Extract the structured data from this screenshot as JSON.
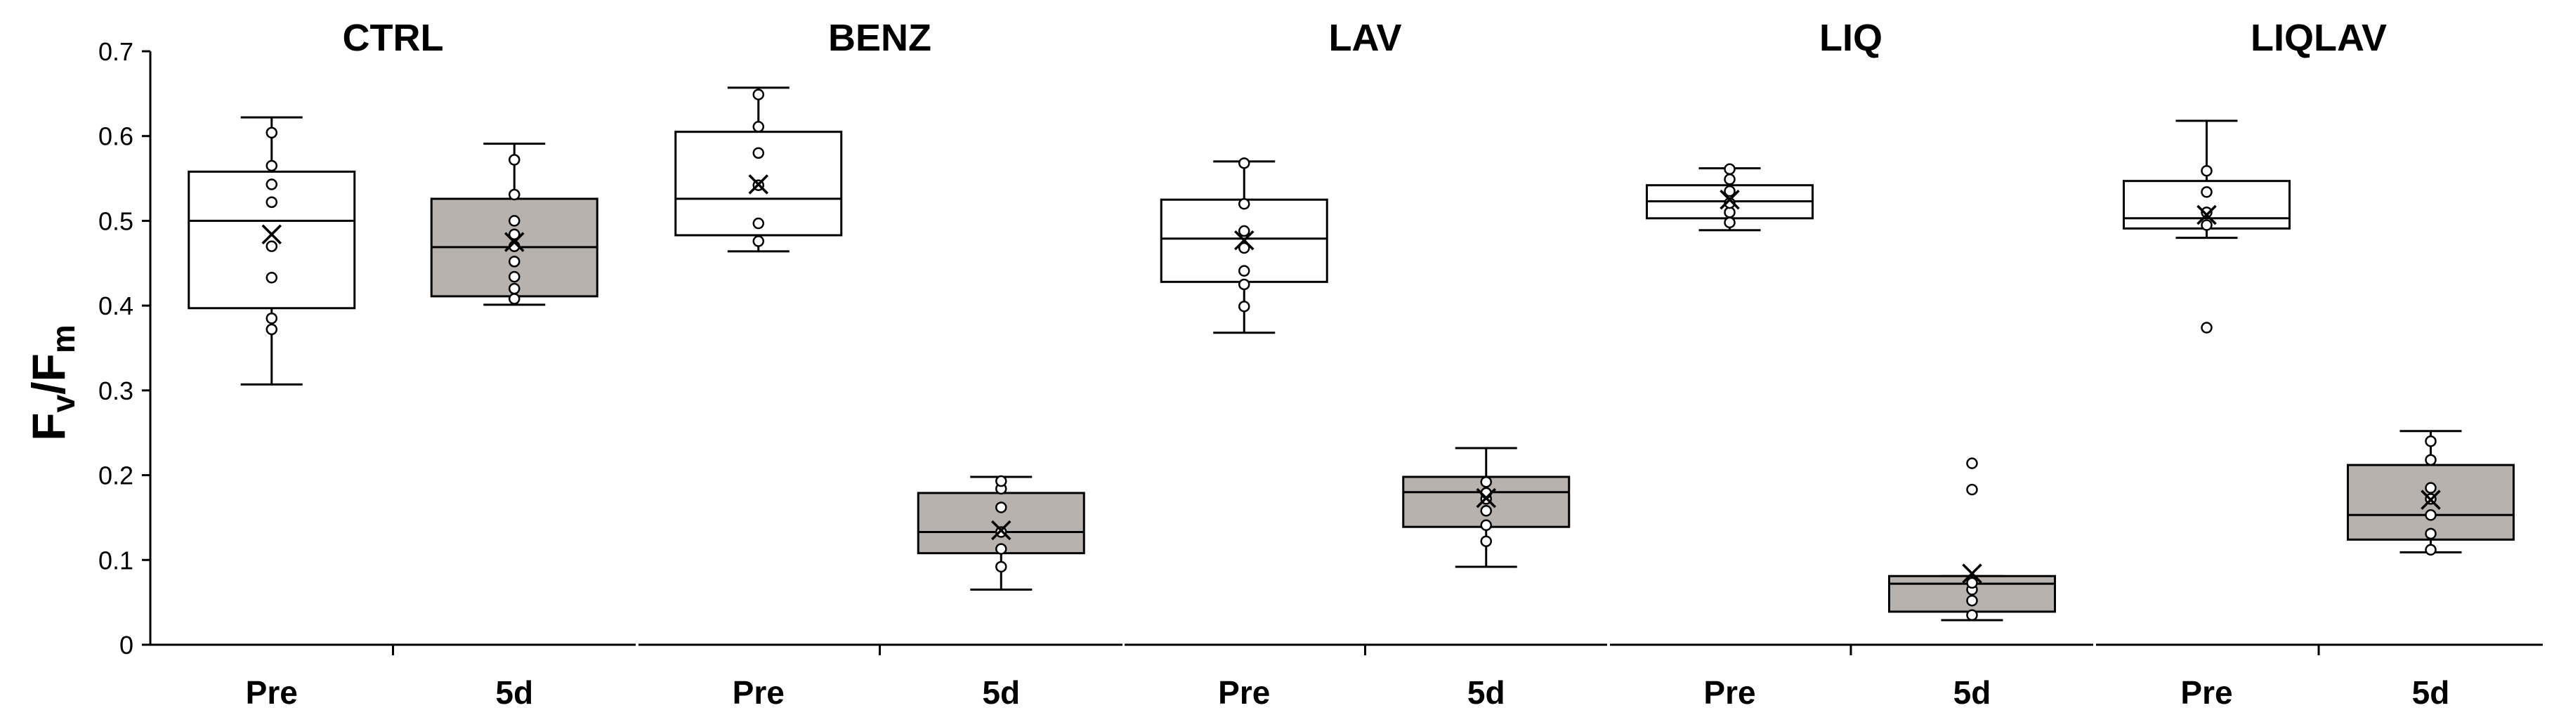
{
  "chart_data": {
    "type": "box",
    "ylabel": {
      "main1": "F",
      "sub1": "v",
      "slash": "/",
      "main2": "F",
      "sub2": "m"
    },
    "ylim": [
      0,
      0.7
    ],
    "yticks": [
      "0",
      "0.1",
      "0.2",
      "0.3",
      "0.4",
      "0.5",
      "0.6",
      "0.7"
    ],
    "categories": [
      "Pre",
      "5d"
    ],
    "colors": {
      "Pre": "#ffffff",
      "5d": "#b7b2ae",
      "stroke": "#000000"
    },
    "panels": [
      {
        "title": "CTRL",
        "boxes": [
          {
            "group": "Pre",
            "min": 0.307,
            "q1": 0.397,
            "median": 0.5,
            "q3": 0.558,
            "max": 0.622,
            "mean": 0.484,
            "points": [
              0.372,
              0.385,
              0.433,
              0.47,
              0.522,
              0.543,
              0.565,
              0.604
            ]
          },
          {
            "group": "5d",
            "min": 0.401,
            "q1": 0.411,
            "median": 0.469,
            "q3": 0.526,
            "max": 0.591,
            "mean": 0.475,
            "points": [
              0.408,
              0.42,
              0.434,
              0.452,
              0.47,
              0.484,
              0.5,
              0.531,
              0.572
            ]
          }
        ]
      },
      {
        "title": "BENZ",
        "boxes": [
          {
            "group": "Pre",
            "min": 0.464,
            "q1": 0.483,
            "median": 0.526,
            "q3": 0.605,
            "max": 0.657,
            "mean": 0.543,
            "points": [
              0.476,
              0.497,
              0.542,
              0.58,
              0.611,
              0.649
            ]
          },
          {
            "group": "5d",
            "min": 0.065,
            "q1": 0.108,
            "median": 0.133,
            "q3": 0.179,
            "max": 0.198,
            "mean": 0.135,
            "points": [
              0.092,
              0.113,
              0.133,
              0.162,
              0.184,
              0.193
            ]
          }
        ]
      },
      {
        "title": "LAV",
        "boxes": [
          {
            "group": "Pre",
            "min": 0.368,
            "q1": 0.428,
            "median": 0.479,
            "q3": 0.525,
            "max": 0.57,
            "mean": 0.477,
            "points": [
              0.399,
              0.425,
              0.441,
              0.468,
              0.488,
              0.52,
              0.568
            ]
          },
          {
            "group": "5d",
            "min": 0.092,
            "q1": 0.139,
            "median": 0.18,
            "q3": 0.198,
            "max": 0.232,
            "mean": 0.173,
            "points": [
              0.122,
              0.141,
              0.158,
              0.172,
              0.179,
              0.192
            ]
          }
        ]
      },
      {
        "title": "LIQ",
        "boxes": [
          {
            "group": "Pre",
            "min": 0.489,
            "q1": 0.503,
            "median": 0.523,
            "q3": 0.542,
            "max": 0.562,
            "mean": 0.525,
            "points": [
              0.498,
              0.51,
              0.521,
              0.535,
              0.549,
              0.561
            ]
          },
          {
            "group": "5d",
            "min": 0.029,
            "q1": 0.039,
            "median": 0.072,
            "q3": 0.081,
            "max": 0.081,
            "mean": 0.084,
            "points": [
              0.035,
              0.052,
              0.065,
              0.073,
              0.183,
              0.214
            ]
          }
        ]
      },
      {
        "title": "LIQLAV",
        "boxes": [
          {
            "group": "Pre",
            "min": 0.48,
            "q1": 0.491,
            "median": 0.503,
            "q3": 0.547,
            "max": 0.618,
            "mean": 0.507,
            "points": [
              0.495,
              0.51,
              0.534,
              0.559
            ],
            "outliers": [
              0.374
            ]
          },
          {
            "group": "5d",
            "min": 0.109,
            "q1": 0.124,
            "median": 0.153,
            "q3": 0.212,
            "max": 0.252,
            "mean": 0.171,
            "points": [
              0.112,
              0.131,
              0.153,
              0.172,
              0.185,
              0.218,
              0.24
            ]
          }
        ]
      }
    ],
    "grid": false,
    "legend": "none"
  }
}
